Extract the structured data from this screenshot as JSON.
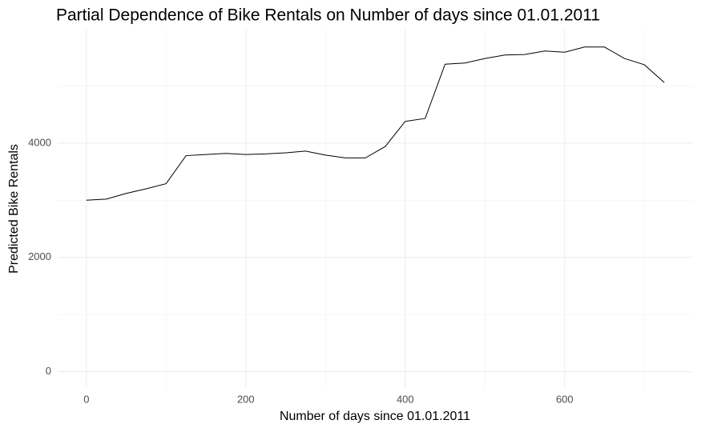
{
  "chart_data": {
    "type": "line",
    "title": "Partial Dependence of Bike Rentals on Number of days since 01.01.2011",
    "x_label": "Number of days since 01.01.2011",
    "y_label": "Predicted Bike Rentals",
    "x": [
      0,
      25,
      50,
      75,
      100,
      125,
      150,
      175,
      200,
      225,
      250,
      275,
      300,
      325,
      350,
      375,
      400,
      425,
      450,
      475,
      500,
      525,
      550,
      575,
      600,
      625,
      650,
      675,
      700,
      725
    ],
    "series": [
      {
        "color": "#000000",
        "values": [
          3000,
          3020,
          3120,
          3200,
          3290,
          3780,
          3800,
          3820,
          3800,
          3810,
          3830,
          3860,
          3790,
          3740,
          3740,
          3940,
          4380,
          4430,
          5380,
          5400,
          5480,
          5540,
          5550,
          5610,
          5590,
          5680,
          5680,
          5480,
          5370,
          5060
        ]
      }
    ],
    "xlim": [
      -36,
      761
    ],
    "ylim": [
      -285,
      5985
    ],
    "xticks": [
      0,
      200,
      400,
      600
    ],
    "yticks": [
      0,
      2000,
      4000
    ],
    "xticks_minor": [
      100,
      300,
      500,
      700
    ],
    "yticks_minor": [
      1000,
      3000,
      5000
    ],
    "grid": true
  }
}
